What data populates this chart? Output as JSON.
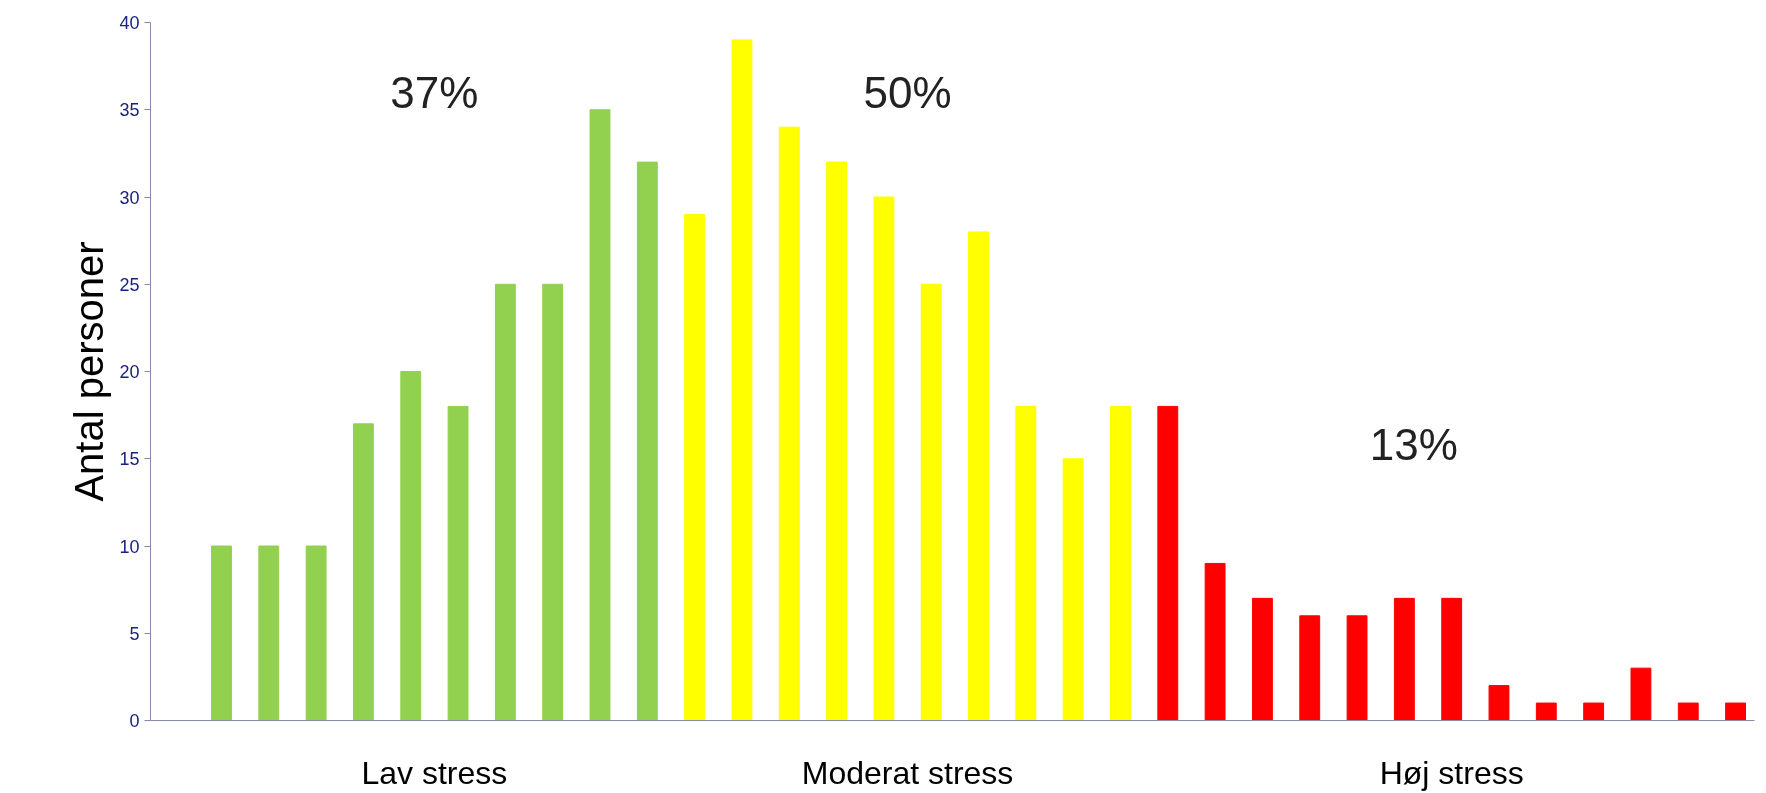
{
  "chart_data": {
    "type": "bar",
    "ylabel": "Antal personer",
    "categories": [
      null,
      null,
      null,
      null,
      null,
      null,
      null,
      null,
      null,
      null,
      null,
      null,
      null,
      null,
      null,
      null,
      null,
      null,
      null,
      null,
      null,
      null,
      null,
      null,
      null,
      null,
      null,
      null,
      null,
      null,
      null,
      null,
      null
    ],
    "values": [
      10,
      10,
      10,
      17,
      20,
      18,
      25,
      25,
      35,
      32,
      29,
      39,
      34,
      32,
      30,
      25,
      28,
      18,
      15,
      18,
      18,
      9,
      7,
      6,
      6,
      7,
      7,
      2,
      1,
      1,
      3,
      1,
      1
    ],
    "colors": [
      "#92d050",
      "#92d050",
      "#92d050",
      "#92d050",
      "#92d050",
      "#92d050",
      "#92d050",
      "#92d050",
      "#92d050",
      "#92d050",
      "#ffff00",
      "#ffff00",
      "#ffff00",
      "#ffff00",
      "#ffff00",
      "#ffff00",
      "#ffff00",
      "#ffff00",
      "#ffff00",
      "#ffff00",
      "#ff0000",
      "#ff0000",
      "#ff0000",
      "#ff0000",
      "#ff0000",
      "#ff0000",
      "#ff0000",
      "#ff0000",
      "#ff0000",
      "#ff0000",
      "#ff0000",
      "#ff0000",
      "#ff0000"
    ],
    "ylim": [
      0,
      40
    ],
    "yticks": [
      0,
      5,
      10,
      15,
      20,
      25,
      30,
      35,
      40
    ],
    "grid": false,
    "annotations": [
      "37%",
      "50%",
      "13%",
      "Lav stress",
      "Moderat stress",
      "Høj stress"
    ]
  }
}
